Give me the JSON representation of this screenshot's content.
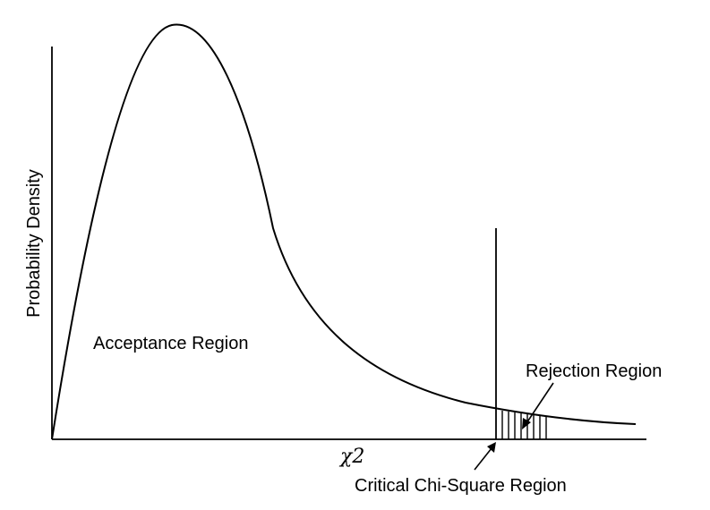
{
  "diagram": {
    "ylabel": "Probability Density",
    "xlabel": "χ2",
    "acceptance_label": "Acceptance Region",
    "rejection_label": "Rejection Region",
    "critical_label": "Critical Chi-Square Region"
  }
}
